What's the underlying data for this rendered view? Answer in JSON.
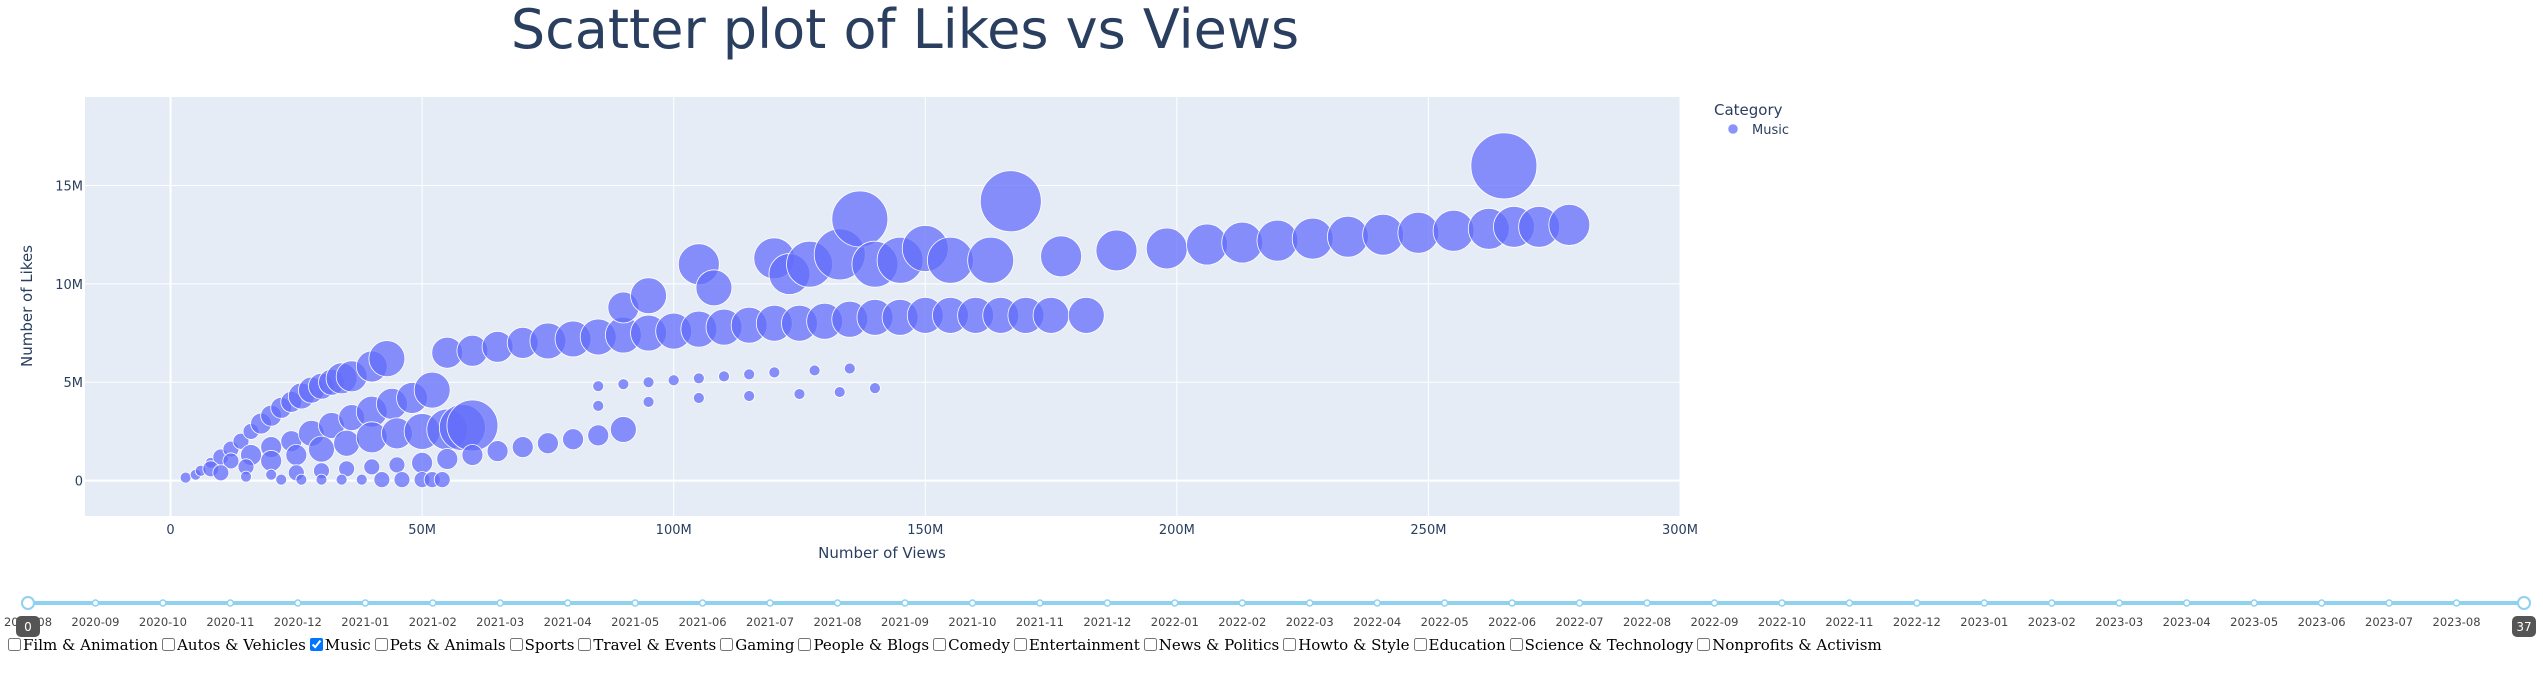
{
  "chart_data": {
    "type": "scatter",
    "title": "Scatter plot of Likes vs Views",
    "xlabel": "Number of Views",
    "ylabel": "Number of Likes",
    "xlim": [
      -17000000,
      300000000
    ],
    "ylim": [
      -1800000,
      19500000
    ],
    "x_ticks": [
      0,
      50000000,
      100000000,
      150000000,
      200000000,
      250000000,
      300000000
    ],
    "x_tick_labels": [
      "0",
      "50M",
      "100M",
      "150M",
      "200M",
      "250M",
      "300M"
    ],
    "y_ticks": [
      0,
      5000000,
      10000000,
      15000000
    ],
    "y_tick_labels": [
      "0",
      "5M",
      "10M",
      "15M"
    ],
    "grid": true,
    "legend_title": "Category",
    "legend_position": "top-right",
    "color": "#636efa",
    "series": [
      {
        "name": "Music",
        "points": [
          [
            3000000,
            150000,
            1
          ],
          [
            5000000,
            300000,
            1
          ],
          [
            6000000,
            500000,
            1
          ],
          [
            8000000,
            900000,
            1
          ],
          [
            10000000,
            1200000,
            2
          ],
          [
            12000000,
            1600000,
            2
          ],
          [
            14000000,
            2000000,
            2
          ],
          [
            16000000,
            2500000,
            2
          ],
          [
            18000000,
            2900000,
            3
          ],
          [
            20000000,
            3300000,
            3
          ],
          [
            22000000,
            3700000,
            3
          ],
          [
            24000000,
            4000000,
            3
          ],
          [
            26000000,
            4300000,
            4
          ],
          [
            28000000,
            4600000,
            4
          ],
          [
            30000000,
            4800000,
            4
          ],
          [
            32000000,
            5000000,
            4
          ],
          [
            34000000,
            5200000,
            5
          ],
          [
            36000000,
            5300000,
            5
          ],
          [
            40000000,
            5800000,
            5
          ],
          [
            43000000,
            6200000,
            6
          ],
          [
            8000000,
            600000,
            2
          ],
          [
            12000000,
            1000000,
            2
          ],
          [
            16000000,
            1300000,
            3
          ],
          [
            20000000,
            1700000,
            3
          ],
          [
            24000000,
            2000000,
            3
          ],
          [
            28000000,
            2400000,
            4
          ],
          [
            32000000,
            2800000,
            4
          ],
          [
            36000000,
            3200000,
            4
          ],
          [
            40000000,
            3500000,
            5
          ],
          [
            44000000,
            3900000,
            5
          ],
          [
            48000000,
            4200000,
            5
          ],
          [
            52000000,
            4600000,
            6
          ],
          [
            10000000,
            400000,
            2
          ],
          [
            15000000,
            700000,
            2
          ],
          [
            20000000,
            1000000,
            3
          ],
          [
            25000000,
            1300000,
            3
          ],
          [
            30000000,
            1600000,
            4
          ],
          [
            35000000,
            1900000,
            4
          ],
          [
            40000000,
            2200000,
            5
          ],
          [
            45000000,
            2400000,
            5
          ],
          [
            50000000,
            2500000,
            6
          ],
          [
            55000000,
            2600000,
            7
          ],
          [
            58000000,
            2700000,
            8
          ],
          [
            60000000,
            2800000,
            9
          ],
          [
            15000000,
            200000,
            1
          ],
          [
            20000000,
            300000,
            1
          ],
          [
            25000000,
            400000,
            2
          ],
          [
            30000000,
            500000,
            2
          ],
          [
            35000000,
            600000,
            2
          ],
          [
            40000000,
            700000,
            2
          ],
          [
            45000000,
            800000,
            2
          ],
          [
            50000000,
            900000,
            3
          ],
          [
            55000000,
            1100000,
            3
          ],
          [
            60000000,
            1300000,
            3
          ],
          [
            65000000,
            1500000,
            3
          ],
          [
            70000000,
            1700000,
            3
          ],
          [
            75000000,
            1900000,
            3
          ],
          [
            80000000,
            2100000,
            3
          ],
          [
            85000000,
            2300000,
            3
          ],
          [
            90000000,
            2600000,
            4
          ],
          [
            22000000,
            50000,
            1
          ],
          [
            26000000,
            50000,
            1
          ],
          [
            30000000,
            50000,
            1
          ],
          [
            34000000,
            50000,
            1
          ],
          [
            38000000,
            50000,
            1
          ],
          [
            42000000,
            50000,
            2
          ],
          [
            46000000,
            50000,
            2
          ],
          [
            50000000,
            50000,
            2
          ],
          [
            52000000,
            50000,
            2
          ],
          [
            54000000,
            50000,
            2
          ],
          [
            55000000,
            6500000,
            5
          ],
          [
            60000000,
            6600000,
            5
          ],
          [
            65000000,
            6800000,
            5
          ],
          [
            70000000,
            7000000,
            5
          ],
          [
            75000000,
            7100000,
            6
          ],
          [
            80000000,
            7200000,
            6
          ],
          [
            85000000,
            7300000,
            6
          ],
          [
            90000000,
            7400000,
            6
          ],
          [
            95000000,
            7500000,
            6
          ],
          [
            100000000,
            7600000,
            6
          ],
          [
            105000000,
            7700000,
            6
          ],
          [
            110000000,
            7800000,
            6
          ],
          [
            115000000,
            7900000,
            6
          ],
          [
            120000000,
            8000000,
            6
          ],
          [
            125000000,
            8000000,
            6
          ],
          [
            130000000,
            8100000,
            6
          ],
          [
            135000000,
            8200000,
            6
          ],
          [
            140000000,
            8300000,
            6
          ],
          [
            145000000,
            8300000,
            6
          ],
          [
            150000000,
            8400000,
            6
          ],
          [
            155000000,
            8400000,
            6
          ],
          [
            160000000,
            8400000,
            6
          ],
          [
            165000000,
            8400000,
            6
          ],
          [
            170000000,
            8400000,
            6
          ],
          [
            175000000,
            8400000,
            6
          ],
          [
            182000000,
            8400000,
            6
          ],
          [
            90000000,
            8800000,
            5
          ],
          [
            95000000,
            9400000,
            6
          ],
          [
            105000000,
            11000000,
            7
          ],
          [
            108000000,
            9800000,
            6
          ],
          [
            120000000,
            11300000,
            7
          ],
          [
            123000000,
            10500000,
            7
          ],
          [
            127000000,
            11000000,
            8
          ],
          [
            133000000,
            11500000,
            9
          ],
          [
            137000000,
            13300000,
            10
          ],
          [
            140000000,
            11000000,
            8
          ],
          [
            145000000,
            11200000,
            8
          ],
          [
            150000000,
            11800000,
            8
          ],
          [
            155000000,
            11200000,
            8
          ],
          [
            163000000,
            11200000,
            8
          ],
          [
            167000000,
            14200000,
            11
          ],
          [
            177000000,
            11400000,
            7
          ],
          [
            188000000,
            11700000,
            7
          ],
          [
            198000000,
            11800000,
            7
          ],
          [
            206000000,
            12000000,
            7
          ],
          [
            213000000,
            12100000,
            7
          ],
          [
            220000000,
            12200000,
            7
          ],
          [
            227000000,
            12300000,
            7
          ],
          [
            234000000,
            12400000,
            7
          ],
          [
            241000000,
            12500000,
            7
          ],
          [
            248000000,
            12600000,
            7
          ],
          [
            255000000,
            12700000,
            7
          ],
          [
            262000000,
            12800000,
            7
          ],
          [
            267000000,
            12900000,
            7
          ],
          [
            272000000,
            12900000,
            7
          ],
          [
            278000000,
            13000000,
            7
          ],
          [
            265000000,
            16000000,
            12
          ],
          [
            85000000,
            4800000,
            1
          ],
          [
            90000000,
            4900000,
            1
          ],
          [
            95000000,
            5000000,
            1
          ],
          [
            100000000,
            5100000,
            1
          ],
          [
            105000000,
            5200000,
            1
          ],
          [
            110000000,
            5300000,
            1
          ],
          [
            115000000,
            5400000,
            1
          ],
          [
            120000000,
            5500000,
            1
          ],
          [
            128000000,
            5600000,
            1
          ],
          [
            135000000,
            5700000,
            1
          ],
          [
            140000000,
            4700000,
            1
          ],
          [
            85000000,
            3800000,
            1
          ],
          [
            95000000,
            4000000,
            1
          ],
          [
            105000000,
            4200000,
            1
          ],
          [
            115000000,
            4300000,
            1
          ],
          [
            125000000,
            4400000,
            1
          ],
          [
            133000000,
            4500000,
            1
          ]
        ]
      }
    ]
  },
  "slider": {
    "labels": [
      "2020-08",
      "2020-09",
      "2020-10",
      "2020-11",
      "2020-12",
      "2021-01",
      "2021-02",
      "2021-03",
      "2021-04",
      "2021-05",
      "2021-06",
      "2021-07",
      "2021-08",
      "2021-09",
      "2021-10",
      "2021-11",
      "2021-12",
      "2022-01",
      "2022-02",
      "2022-03",
      "2022-04",
      "2022-05",
      "2022-06",
      "2022-07",
      "2022-08",
      "2022-09",
      "2022-10",
      "2022-11",
      "2022-12",
      "2023-01",
      "2023-02",
      "2023-03",
      "2023-04",
      "2023-05",
      "2023-06",
      "2023-07",
      "2023-08",
      ""
    ],
    "start_label": "0",
    "end_label": "37",
    "color": "#8fd1f0"
  },
  "filters": [
    {
      "label": "Film & Animation",
      "checked": false
    },
    {
      "label": "Autos & Vehicles",
      "checked": false
    },
    {
      "label": "Music",
      "checked": true
    },
    {
      "label": "Pets & Animals",
      "checked": false
    },
    {
      "label": "Sports",
      "checked": false
    },
    {
      "label": "Travel & Events",
      "checked": false
    },
    {
      "label": "Gaming",
      "checked": false
    },
    {
      "label": "People & Blogs",
      "checked": false
    },
    {
      "label": "Comedy",
      "checked": false
    },
    {
      "label": "Entertainment",
      "checked": false
    },
    {
      "label": "News & Politics",
      "checked": false
    },
    {
      "label": "Howto & Style",
      "checked": false
    },
    {
      "label": "Education",
      "checked": false
    },
    {
      "label": "Science & Technology",
      "checked": false
    },
    {
      "label": "Nonprofits & Activism",
      "checked": false
    }
  ]
}
